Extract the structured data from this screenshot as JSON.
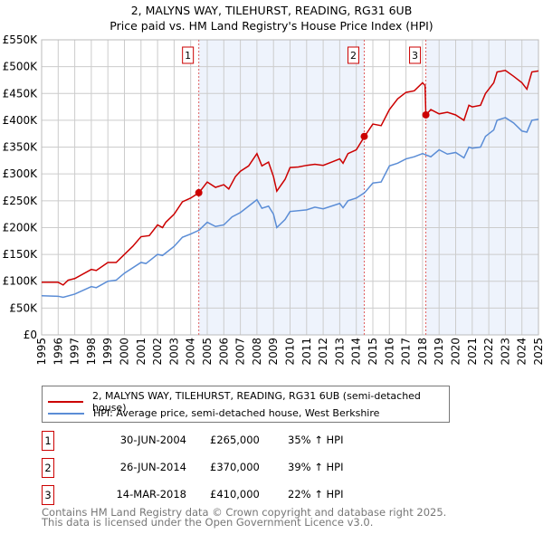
{
  "title": "2, MALYNS WAY, TILEHURST, READING, RG31 6UB",
  "subtitle": "Price paid vs. HM Land Registry's House Price Index (HPI)",
  "colors": {
    "property": "#cc0000",
    "hpi": "#5b8dd6",
    "shade": "#eef3fc",
    "grid": "#cccccc"
  },
  "chart_data": {
    "type": "line",
    "xlim": [
      1995,
      2025
    ],
    "ylim": [
      0,
      550000
    ],
    "yticks": [
      {
        "v": 0,
        "label": "£0"
      },
      {
        "v": 50000,
        "label": "£50K"
      },
      {
        "v": 100000,
        "label": "£100K"
      },
      {
        "v": 150000,
        "label": "£150K"
      },
      {
        "v": 200000,
        "label": "£200K"
      },
      {
        "v": 250000,
        "label": "£250K"
      },
      {
        "v": 300000,
        "label": "£300K"
      },
      {
        "v": 350000,
        "label": "£350K"
      },
      {
        "v": 400000,
        "label": "£400K"
      },
      {
        "v": 450000,
        "label": "£450K"
      },
      {
        "v": 500000,
        "label": "£500K"
      },
      {
        "v": 550000,
        "label": "£550K"
      }
    ],
    "xticks": [
      "1995",
      "1996",
      "1997",
      "1998",
      "1999",
      "2000",
      "2001",
      "2002",
      "2003",
      "2004",
      "2005",
      "2006",
      "2007",
      "2008",
      "2009",
      "2010",
      "2011",
      "2012",
      "2013",
      "2014",
      "2015",
      "2016",
      "2017",
      "2018",
      "2019",
      "2020",
      "2021",
      "2022",
      "2023",
      "2024",
      "2025"
    ],
    "series": [
      {
        "name": "2, MALYNS WAY, TILEHURST, READING, RG31 6UB (semi-detached house)",
        "color": "#cc0000",
        "x": [
          1995,
          1996,
          1996.3,
          1996.6,
          1997,
          1998,
          1998.3,
          1999,
          1999.5,
          2000,
          2000.5,
          2001,
          2001.5,
          2002,
          2002.3,
          2002.5,
          2003,
          2003.5,
          2004,
          2004.5,
          2005,
          2005.5,
          2006,
          2006.3,
          2006.7,
          2007,
          2007.5,
          2008,
          2008.3,
          2008.7,
          2009,
          2009.2,
          2009.7,
          2010,
          2010.5,
          2011,
          2011.5,
          2012,
          2012.5,
          2013,
          2013.2,
          2013.5,
          2014,
          2014.5,
          2015,
          2015.5,
          2016,
          2016.5,
          2017,
          2017.5,
          2018,
          2018.15,
          2018.2,
          2018.5,
          2019,
          2019.5,
          2020,
          2020.5,
          2020.8,
          2021,
          2021.5,
          2021.8,
          2022.3,
          2022.5,
          2023,
          2023.5,
          2024,
          2024.3,
          2024.6,
          2025
        ],
        "y": [
          98000,
          98000,
          93000,
          102000,
          105000,
          122000,
          120000,
          135000,
          135000,
          150000,
          165000,
          183000,
          185000,
          205000,
          200000,
          210000,
          225000,
          248000,
          255000,
          265000,
          285000,
          275000,
          280000,
          272000,
          295000,
          305000,
          315000,
          338000,
          315000,
          322000,
          295000,
          268000,
          290000,
          312000,
          313000,
          316000,
          318000,
          316000,
          322000,
          328000,
          320000,
          338000,
          345000,
          370000,
          393000,
          390000,
          420000,
          440000,
          452000,
          455000,
          470000,
          465000,
          410000,
          420000,
          412000,
          415000,
          410000,
          400000,
          428000,
          425000,
          428000,
          450000,
          470000,
          490000,
          493000,
          482000,
          470000,
          458000,
          490000,
          492000
        ]
      },
      {
        "name": "HPI: Average price, semi-detached house, West Berkshire",
        "color": "#5b8dd6",
        "x": [
          1995,
          1996,
          1996.3,
          1997,
          1998,
          1998.3,
          1999,
          1999.5,
          2000,
          2001,
          2001.3,
          2002,
          2002.3,
          2003,
          2003.5,
          2004,
          2004.5,
          2005,
          2005.5,
          2006,
          2006.5,
          2007,
          2007.5,
          2008,
          2008.3,
          2008.7,
          2009,
          2009.2,
          2009.7,
          2010,
          2011,
          2011.5,
          2012,
          2013,
          2013.2,
          2013.5,
          2014,
          2014.5,
          2015,
          2015.5,
          2016,
          2016.5,
          2017,
          2017.5,
          2018,
          2018.5,
          2019,
          2019.5,
          2020,
          2020.5,
          2020.8,
          2021,
          2021.5,
          2021.8,
          2022.3,
          2022.5,
          2023,
          2023.5,
          2024,
          2024.3,
          2024.6,
          2025
        ],
        "y": [
          73000,
          72000,
          70000,
          76000,
          90000,
          88000,
          100000,
          102000,
          115000,
          135000,
          133000,
          150000,
          148000,
          165000,
          182000,
          188000,
          195000,
          210000,
          202000,
          205000,
          220000,
          228000,
          240000,
          252000,
          236000,
          240000,
          225000,
          200000,
          215000,
          230000,
          233000,
          238000,
          235000,
          245000,
          237000,
          250000,
          255000,
          265000,
          283000,
          285000,
          315000,
          320000,
          328000,
          332000,
          338000,
          332000,
          345000,
          337000,
          340000,
          330000,
          350000,
          348000,
          350000,
          370000,
          382000,
          400000,
          405000,
          395000,
          380000,
          378000,
          400000,
          402000
        ]
      }
    ],
    "sales": [
      {
        "n": "1",
        "x": 2004.49,
        "y": 265000
      },
      {
        "n": "2",
        "x": 2014.48,
        "y": 370000
      },
      {
        "n": "3",
        "x": 2018.2,
        "y": 410000
      }
    ]
  },
  "sales_table": [
    {
      "n": "1",
      "date": "30-JUN-2004",
      "price": "£265,000",
      "hpi": "35% ↑ HPI"
    },
    {
      "n": "2",
      "date": "26-JUN-2014",
      "price": "£370,000",
      "hpi": "39% ↑ HPI"
    },
    {
      "n": "3",
      "date": "14-MAR-2018",
      "price": "£410,000",
      "hpi": "22% ↑ HPI"
    }
  ],
  "footer": [
    "Contains HM Land Registry data © Crown copyright and database right 2025.",
    "This data is licensed under the Open Government Licence v3.0."
  ]
}
